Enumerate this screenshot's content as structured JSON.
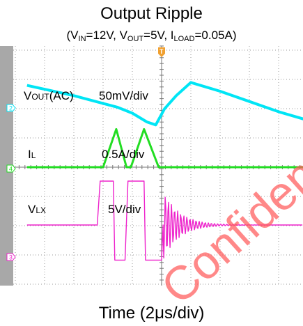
{
  "title": "Output Ripple",
  "subtitle": {
    "open": "(V",
    "vin_sub": "IN",
    "vin_val": "=12V, V",
    "vout_sub": "OUT",
    "vout_val": "=5V, I",
    "iload_sub": "LOAD",
    "iload_val": "=0.05A)"
  },
  "x_axis_label": "Time (2μs/div)",
  "watermark": "Confidential",
  "trigger_marker": "T",
  "chart_data": {
    "type": "line",
    "time_per_div_us": 2,
    "xlim_us": [
      -9.2,
      10.4
    ],
    "grid": true,
    "channels": [
      {
        "id": "2",
        "label_main": "V",
        "label_sub": "OUT",
        "label_tail": "(AC)",
        "scale": "50mV/div",
        "color": "#00e5f5",
        "x_us": [
          -9.2,
          -6,
          -3,
          -2,
          -1,
          -0.4,
          0.2,
          1,
          2,
          4,
          6,
          8,
          10.4
        ],
        "y_div": [
          0.7,
          0.35,
          -0.05,
          -0.25,
          -0.55,
          -0.65,
          -0.1,
          0.35,
          0.8,
          0.5,
          0.15,
          -0.2,
          -0.55
        ]
      },
      {
        "id": "4",
        "label_main": "I",
        "label_sub": "L",
        "label_tail": "",
        "scale": "0.5A/div",
        "color": "#22dd22",
        "x_us": [
          -9.2,
          -4.2,
          -4.0,
          -3.1,
          -2.4,
          -2.1,
          -1.2,
          -0.2,
          10.4
        ],
        "y_div": [
          0,
          0,
          0,
          1.3,
          0,
          0,
          1.3,
          0,
          0
        ]
      },
      {
        "id": "3",
        "label_main": "V",
        "label_sub": "LX",
        "label_tail": "",
        "scale": "5V/div",
        "color": "#ee22cc",
        "x_us": [
          -9.2,
          -4.4,
          -4.2,
          -3.3,
          -3.2,
          -2.5,
          -2.3,
          -1.2,
          -1.1,
          0,
          0.1,
          10.4
        ],
        "y_div": [
          0,
          0,
          1.5,
          1.5,
          -1.2,
          -1.2,
          1.5,
          1.5,
          -1.2,
          -1.2,
          0,
          0
        ]
      }
    ]
  }
}
